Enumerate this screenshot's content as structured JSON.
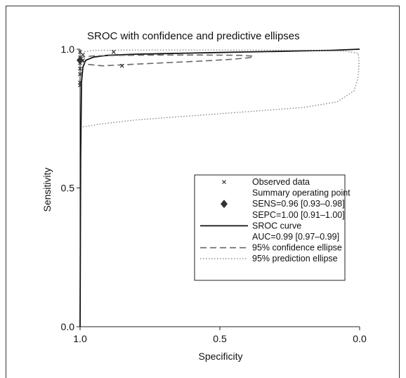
{
  "chart_data": {
    "type": "scatter",
    "title": "SROC with confidence and predictive ellipses",
    "xlabel": "Specificity",
    "ylabel": "Sensitivity",
    "xlim": [
      1.0,
      0.0
    ],
    "ylim": [
      0.0,
      1.0
    ],
    "x_reversed": true,
    "x_ticks": [
      "1.0",
      "0.5",
      "0.0"
    ],
    "y_ticks": [
      "0.0",
      "0.5",
      "1.0"
    ],
    "grid": false,
    "legend_position": "lower-right",
    "series": [
      {
        "name": "Observed data",
        "kind": "points",
        "marker": "x",
        "x": [
          1.0,
          1.0,
          1.0,
          1.0,
          1.0,
          0.99,
          1.0,
          0.88,
          0.85,
          0.99,
          1.0
        ],
        "y": [
          0.97,
          0.95,
          0.93,
          0.91,
          0.88,
          0.98,
          0.99,
          0.99,
          0.94,
          0.96,
          0.87
        ]
      },
      {
        "name": "Summary operating point",
        "kind": "point",
        "marker": "diamond",
        "x": [
          1.0
        ],
        "y": [
          0.96
        ]
      },
      {
        "name": "SROC curve",
        "kind": "line",
        "style": "solid",
        "x": [
          1.0,
          0.998,
          0.995,
          0.99,
          0.98,
          0.95,
          0.9,
          0.8,
          0.7,
          0.6,
          0.5,
          0.4,
          0.3,
          0.2,
          0.1,
          0.0
        ],
        "y": [
          0.0,
          0.6,
          0.88,
          0.935,
          0.96,
          0.972,
          0.978,
          0.982,
          0.984,
          0.986,
          0.988,
          0.99,
          0.992,
          0.994,
          0.996,
          1.0
        ]
      },
      {
        "name": "95% confidence ellipse",
        "kind": "line",
        "style": "dashed",
        "x": [
          1.0,
          0.99,
          0.97,
          0.92,
          0.82,
          0.68,
          0.55,
          0.45,
          0.39,
          0.38,
          0.43,
          0.55,
          0.7,
          0.85,
          0.95,
          0.99,
          1.0
        ],
        "y": [
          0.965,
          0.955,
          0.945,
          0.94,
          0.945,
          0.952,
          0.958,
          0.964,
          0.97,
          0.975,
          0.978,
          0.979,
          0.979,
          0.978,
          0.976,
          0.972,
          0.965
        ]
      },
      {
        "name": "95% prediction ellipse",
        "kind": "line",
        "style": "dotted",
        "x": [
          0.99,
          0.93,
          0.8,
          0.6,
          0.4,
          0.2,
          0.08,
          0.02,
          0.005,
          0.002,
          0.005,
          0.05,
          0.2,
          0.5,
          0.8,
          0.95,
          0.99
        ],
        "y": [
          0.72,
          0.73,
          0.745,
          0.76,
          0.775,
          0.79,
          0.81,
          0.85,
          0.9,
          0.95,
          0.985,
          0.993,
          0.996,
          0.997,
          0.997,
          0.996,
          0.99
        ]
      }
    ],
    "legend": [
      {
        "marker": "x",
        "label": "Observed data"
      },
      {
        "marker": "none",
        "label": "Summary operating point"
      },
      {
        "marker": "diamond",
        "label": "SENS=0.96 [0.93–0.98]"
      },
      {
        "marker": "none",
        "label": "SEPC=1.00 [0.91–1.00]"
      },
      {
        "marker": "solid",
        "label": "SROC curve"
      },
      {
        "marker": "none",
        "label": "AUC=0.99 [0.97–0.99]"
      },
      {
        "marker": "dashed",
        "label": "95% confidence ellipse"
      },
      {
        "marker": "dotted",
        "label": "95% prediction ellipse"
      }
    ]
  }
}
